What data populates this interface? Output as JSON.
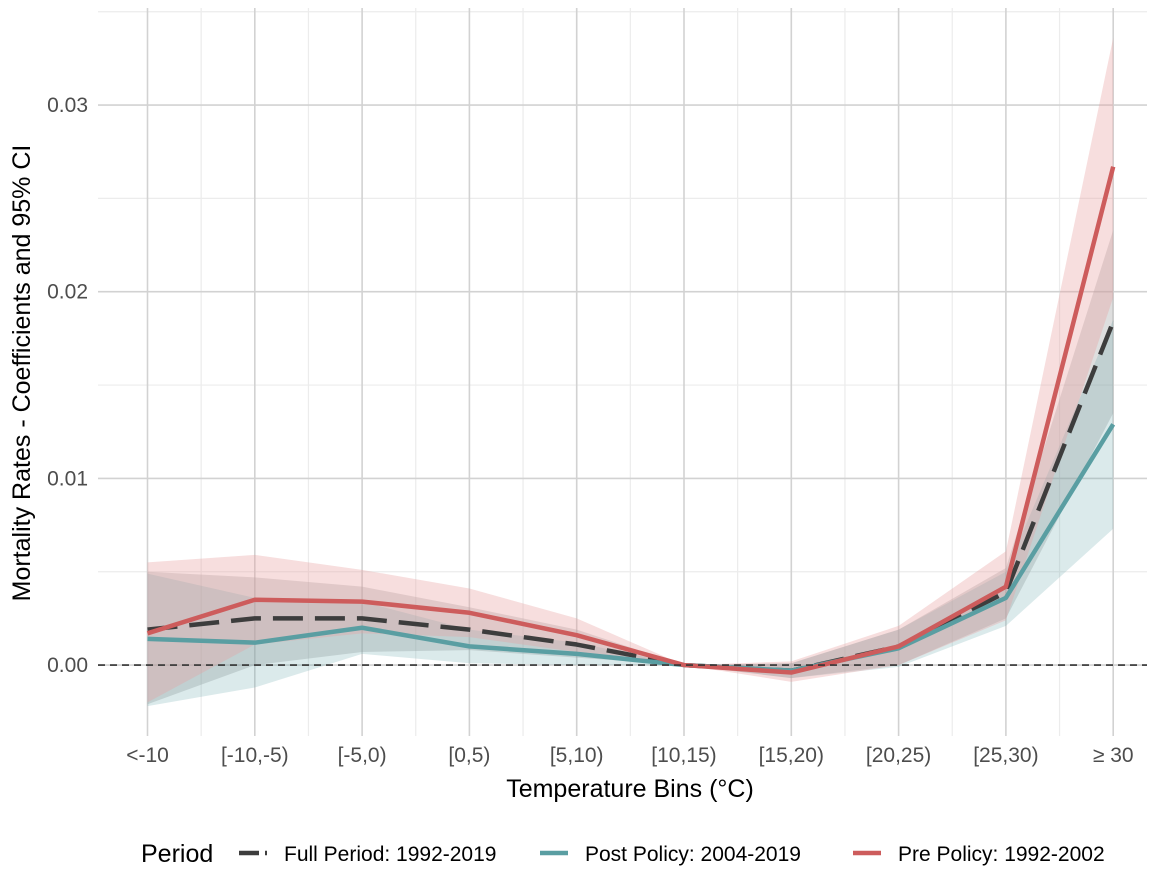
{
  "chart_data": {
    "type": "line",
    "title": "",
    "xlabel": "Temperature Bins (°C)",
    "ylabel": "Mortality Rates - Coefficients and 95% CI",
    "categories": [
      "<-10",
      "[-10,-5)",
      "[-5,0)",
      "[0,5)",
      "[5,10)",
      "[10,15)",
      "[15,20)",
      "[20,25)",
      "[25,30)",
      "≥ 30"
    ],
    "ylim": [
      -0.0038,
      0.0352
    ],
    "yticks": [
      0.0,
      0.01,
      0.02,
      0.03
    ],
    "ytick_labels": [
      "0.00",
      "0.01",
      "0.02",
      "0.03"
    ],
    "grid": true,
    "reference_line": 0,
    "legend": {
      "title": "Period",
      "position": "bottom"
    },
    "series": [
      {
        "name": "Full Period: 1992-2019",
        "color": "#3d3d3d",
        "style": "dashed",
        "values": [
          0.0019,
          0.0025,
          0.0025,
          0.0019,
          0.0011,
          0.0,
          -0.0003,
          0.001,
          0.0039,
          0.0184
        ],
        "ci_lower": [
          -0.0021,
          0.0,
          0.0007,
          0.0008,
          0.0004,
          0.0,
          -0.0007,
          0.0,
          0.0025,
          0.0135
        ],
        "ci_upper": [
          0.005,
          0.0047,
          0.0042,
          0.0031,
          0.0019,
          0.0,
          0.0001,
          0.0019,
          0.0052,
          0.0233
        ],
        "ci_color": "#a0a0a0"
      },
      {
        "name": "Post Policy: 2004-2019",
        "color": "#5a9ea2",
        "style": "solid",
        "values": [
          0.0014,
          0.0012,
          0.002,
          0.001,
          0.0006,
          0.0,
          -0.0003,
          0.0009,
          0.0036,
          0.0129
        ],
        "ci_lower": [
          -0.0022,
          -0.0012,
          0.0006,
          0.0001,
          0.0,
          0.0,
          -0.0007,
          -0.0001,
          0.0021,
          0.0073
        ],
        "ci_upper": [
          0.0049,
          0.0036,
          0.0034,
          0.0019,
          0.0012,
          0.0,
          0.0001,
          0.0019,
          0.005,
          0.0185
        ],
        "ci_color": "#5a9ea2"
      },
      {
        "name": "Pre Policy: 1992-2002",
        "color": "#cd5c5c",
        "style": "solid",
        "values": [
          0.0017,
          0.0035,
          0.0034,
          0.0028,
          0.0016,
          0.0,
          -0.0004,
          0.001,
          0.0042,
          0.0267
        ],
        "ci_lower": [
          -0.002,
          0.0011,
          0.0017,
          0.0015,
          0.0007,
          0.0,
          -0.0009,
          0.0,
          0.0024,
          0.0197
        ],
        "ci_upper": [
          0.0055,
          0.0059,
          0.0051,
          0.0041,
          0.0025,
          0.0,
          0.0002,
          0.0021,
          0.0061,
          0.0336
        ],
        "ci_color": "#e8a0a0"
      }
    ]
  }
}
